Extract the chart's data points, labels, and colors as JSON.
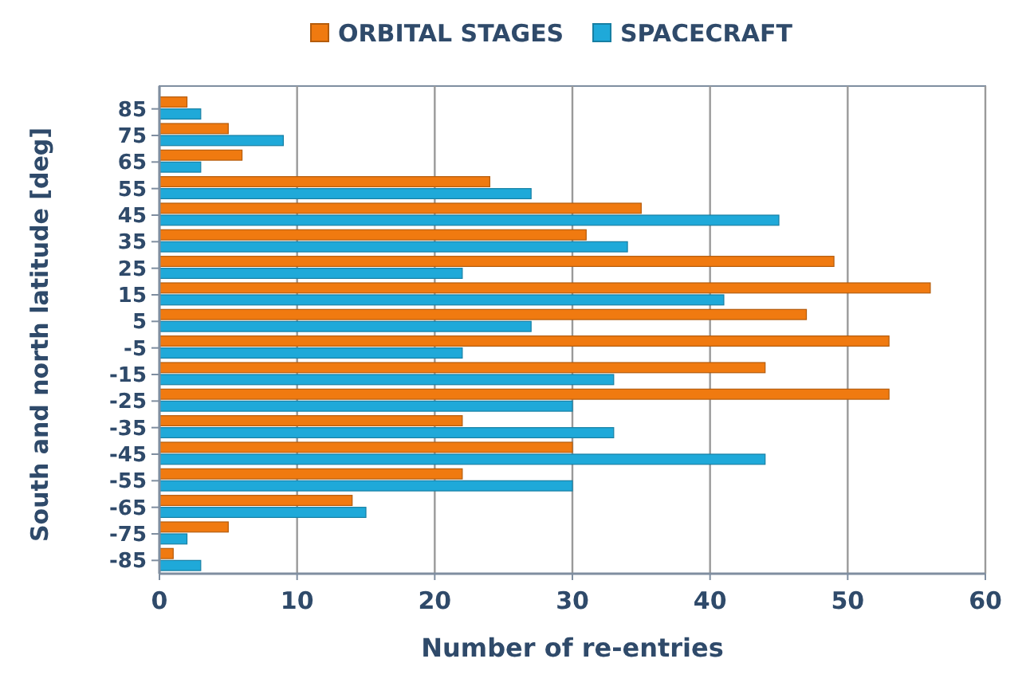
{
  "chart_data": {
    "type": "bar",
    "orientation": "horizontal",
    "xlabel": "Number of re-entries",
    "ylabel": "South and north latitude [deg]",
    "categories": [
      "85",
      "75",
      "65",
      "55",
      "45",
      "35",
      "25",
      "15",
      "5",
      "-5",
      "-15",
      "-25",
      "-35",
      "-45",
      "-55",
      "-65",
      "-75",
      "-85"
    ],
    "series": [
      {
        "name": "ORBITAL STAGES",
        "color": "#f07a10",
        "values": [
          2,
          5,
          6,
          24,
          35,
          31,
          49,
          56,
          47,
          53,
          44,
          53,
          22,
          30,
          22,
          14,
          5,
          1
        ]
      },
      {
        "name": "SPACECRAFT",
        "color": "#1fa9d9",
        "values": [
          3,
          9,
          3,
          27,
          45,
          34,
          22,
          41,
          27,
          22,
          33,
          30,
          33,
          44,
          30,
          15,
          2,
          3
        ]
      }
    ],
    "xlim": [
      0,
      60
    ],
    "xticks": [
      0,
      10,
      20,
      30,
      40,
      50,
      60
    ],
    "grid": "x",
    "legend": "top"
  }
}
